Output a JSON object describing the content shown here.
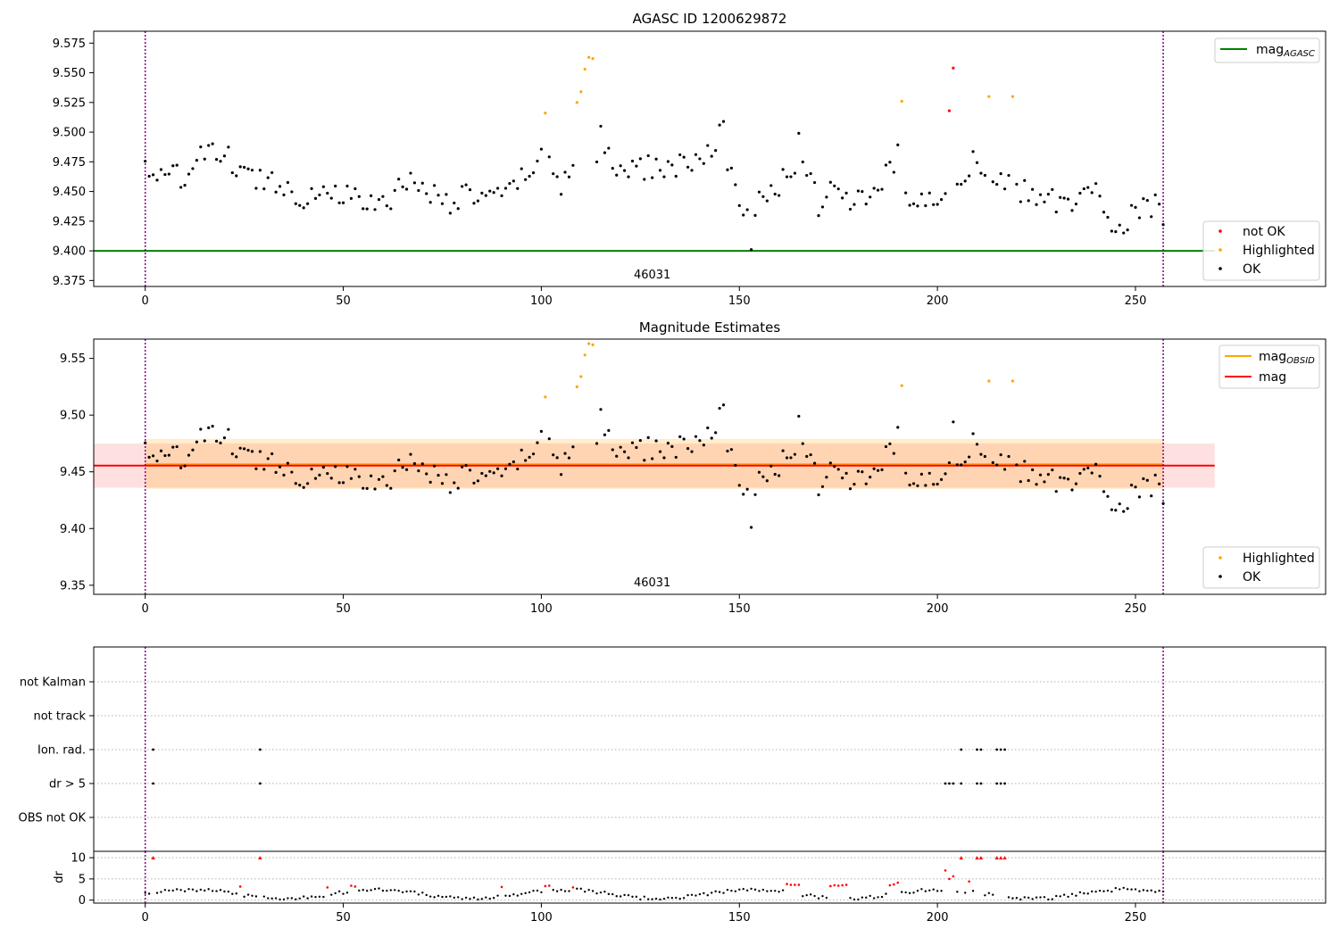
{
  "chart_data": [
    {
      "type": "scatter",
      "title": "AGASC ID 1200629872",
      "xlim": [
        -13,
        298
      ],
      "ylim": [
        9.37,
        9.585
      ],
      "xticks": [
        "0",
        "50",
        "100",
        "150",
        "200",
        "250"
      ],
      "yticks": [
        "9.375",
        "9.400",
        "9.425",
        "9.450",
        "9.475",
        "9.500",
        "9.525",
        "9.550",
        "9.575"
      ],
      "ytick_values": [
        9.375,
        9.4,
        9.425,
        9.45,
        9.475,
        9.5,
        9.525,
        9.55,
        9.575
      ],
      "obsid_label": "46031",
      "obsid_label_x": 128,
      "interval_bounds": [
        0,
        257
      ],
      "mag_agasc": 9.4,
      "legend_top": {
        "label": "mag",
        "sub": "AGASC",
        "color": "#008000"
      },
      "legend_bottom": [
        {
          "label": "not OK",
          "color": "#ff0000"
        },
        {
          "label": "Highlighted",
          "color": "#ffa500"
        },
        {
          "label": "OK",
          "color": "#000000"
        }
      ],
      "highlighted": [
        [
          101,
          9.516
        ],
        [
          109,
          9.525
        ],
        [
          110,
          9.534
        ],
        [
          111,
          9.553
        ],
        [
          112,
          9.563
        ],
        [
          113,
          9.562
        ],
        [
          191,
          9.526
        ],
        [
          213,
          9.53
        ],
        [
          219,
          9.53
        ]
      ],
      "not_ok": [
        [
          203,
          9.518
        ],
        [
          204,
          9.554
        ]
      ]
    },
    {
      "type": "scatter",
      "title": "Magnitude Estimates",
      "xlim": [
        -13,
        298
      ],
      "ylim": [
        9.342,
        9.567
      ],
      "xticks": [
        "0",
        "50",
        "100",
        "150",
        "200",
        "250"
      ],
      "yticks": [
        "9.35",
        "9.40",
        "9.45",
        "9.50",
        "9.55"
      ],
      "ytick_values": [
        9.35,
        9.4,
        9.45,
        9.5,
        9.55
      ],
      "obsid_label": "46031",
      "obsid_label_x": 128,
      "interval_bounds": [
        0,
        257
      ],
      "mag_obsid": {
        "value": 9.4565,
        "low": 9.435,
        "high": 9.479,
        "x": [
          0,
          257
        ]
      },
      "mag": {
        "value": 9.4555,
        "low": 9.436,
        "high": 9.475,
        "x": [
          -13,
          270
        ]
      },
      "legend_top": [
        {
          "label": "mag",
          "sub": "OBSID",
          "color": "#ffa500"
        },
        {
          "label": "mag",
          "sub": "",
          "color": "#ff0000"
        }
      ],
      "legend_bottom": [
        {
          "label": "Highlighted",
          "color": "#ffa500"
        },
        {
          "label": "OK",
          "color": "#000000"
        }
      ],
      "highlighted": [
        [
          101,
          9.516
        ],
        [
          109,
          9.525
        ],
        [
          110,
          9.534
        ],
        [
          111,
          9.553
        ],
        [
          112,
          9.563
        ],
        [
          113,
          9.562
        ],
        [
          191,
          9.526
        ],
        [
          213,
          9.53
        ],
        [
          219,
          9.53
        ]
      ]
    },
    {
      "type": "scatter",
      "title": "",
      "xlim": [
        -13,
        298
      ],
      "categories": [
        "not Kalman",
        "not track",
        "Ion. rad.",
        "dr > 5",
        "OBS not OK"
      ],
      "interval_bounds": [
        0,
        257
      ],
      "flags": {
        "Ion. rad.": [
          2,
          29,
          206,
          210,
          211,
          215,
          216,
          217
        ],
        "dr > 5": [
          2,
          29,
          202,
          203,
          204,
          206,
          210,
          211,
          215,
          216,
          217
        ]
      }
    },
    {
      "type": "scatter",
      "title": "",
      "ylabel": "dr",
      "xlim": [
        -13,
        298
      ],
      "ylim": [
        -0.7,
        11.5
      ],
      "xticks": [
        "0",
        "50",
        "100",
        "150",
        "200",
        "250"
      ],
      "yticks": [
        "0",
        "5",
        "10"
      ],
      "ytick_values": [
        0,
        5,
        10
      ],
      "interval_bounds": [
        0,
        257
      ],
      "clipped_red": [
        2,
        29,
        206,
        210,
        211,
        215,
        216,
        217
      ],
      "red_points": [
        [
          24,
          3.2
        ],
        [
          46,
          3.0
        ],
        [
          52,
          3.4
        ],
        [
          53,
          3.2
        ],
        [
          90,
          3.1
        ],
        [
          101,
          3.3
        ],
        [
          102,
          3.4
        ],
        [
          108,
          3.0
        ],
        [
          162,
          3.8
        ],
        [
          163,
          3.6
        ],
        [
          164,
          3.6
        ],
        [
          165,
          3.6
        ],
        [
          173,
          3.3
        ],
        [
          174,
          3.5
        ],
        [
          175,
          3.4
        ],
        [
          176,
          3.5
        ],
        [
          177,
          3.6
        ],
        [
          188,
          3.5
        ],
        [
          189,
          3.7
        ],
        [
          190,
          4.1
        ],
        [
          202,
          7.0
        ],
        [
          203,
          5.0
        ],
        [
          204,
          5.6
        ],
        [
          208,
          4.4
        ]
      ]
    }
  ]
}
